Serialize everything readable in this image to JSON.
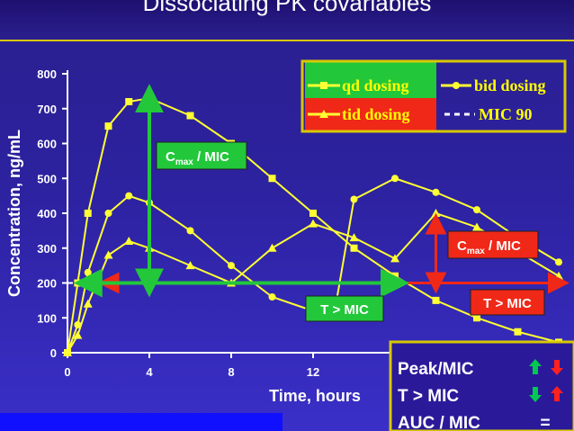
{
  "title": "Dissociating PK covariables",
  "colors": {
    "series": "#ffff33",
    "green": "#22c83a",
    "red": "#f02818",
    "mic_line": "#ffffff",
    "summary_green": "#00c850",
    "summary_red": "#ff2020"
  },
  "chart_data": {
    "type": "line",
    "xlabel": "Time, hours",
    "ylabel": "Concentration, ng/mL",
    "xlim": [
      0,
      24
    ],
    "ylim": [
      0,
      800
    ],
    "xticks": [
      "0",
      "4",
      "8",
      "12"
    ],
    "yticks": [
      "0",
      "100",
      "200",
      "300",
      "400",
      "500",
      "600",
      "700",
      "800"
    ],
    "series": [
      {
        "name": "qd dosing",
        "marker": "square",
        "x": [
          0,
          0.5,
          1,
          2,
          3,
          4,
          6,
          8,
          10,
          12,
          14,
          16,
          18,
          20,
          22,
          24
        ],
        "y": [
          0,
          200,
          400,
          650,
          720,
          730,
          680,
          600,
          500,
          400,
          300,
          220,
          150,
          100,
          60,
          30
        ]
      },
      {
        "name": "bid dosing",
        "marker": "circle",
        "x": [
          0,
          0.5,
          1,
          2,
          3,
          4,
          6,
          8,
          10,
          12,
          13,
          14,
          16,
          18,
          20,
          22,
          24
        ],
        "y": [
          0,
          80,
          230,
          400,
          450,
          430,
          350,
          250,
          160,
          120,
          100,
          440,
          500,
          460,
          410,
          330,
          260
        ]
      },
      {
        "name": "tid dosing",
        "marker": "triangle",
        "x": [
          0,
          0.5,
          1,
          2,
          3,
          4,
          6,
          8,
          10,
          12,
          14,
          16,
          18,
          20,
          22,
          24
        ],
        "y": [
          0,
          50,
          140,
          280,
          320,
          300,
          250,
          200,
          300,
          370,
          330,
          270,
          400,
          360,
          290,
          220
        ]
      }
    ],
    "mic90": {
      "name": "MIC 90",
      "value": 200
    },
    "annotations": {
      "cmax_mic_left": {
        "label_main": "C",
        "label_sub": "max",
        "label_rest": " / MIC",
        "x": 4,
        "y_from": 200,
        "y_to": 730
      },
      "t_mic_left": {
        "label": "T > MIC",
        "x_from": 1,
        "x_to": 16,
        "y": 200
      },
      "cmax_mic_right": {
        "label_main": "C",
        "label_sub": "max",
        "label_rest": " / MIC",
        "x": 18,
        "y_from": 200,
        "y_to": 370
      },
      "t_mic_right": {
        "label": "T > MIC",
        "x_from": 2,
        "x_to": 24,
        "y": 200
      }
    },
    "legend": {
      "placement": "top-right",
      "items": [
        "qd dosing",
        "bid dosing",
        "tid dosing",
        "MIC 90"
      ]
    }
  },
  "summary": {
    "rows": [
      {
        "label": "Peak/MIC",
        "left": "up",
        "right": "down"
      },
      {
        "label": "T > MIC",
        "left": "down",
        "right": "up"
      },
      {
        "label": "AUC / MIC",
        "equal": "="
      }
    ]
  }
}
